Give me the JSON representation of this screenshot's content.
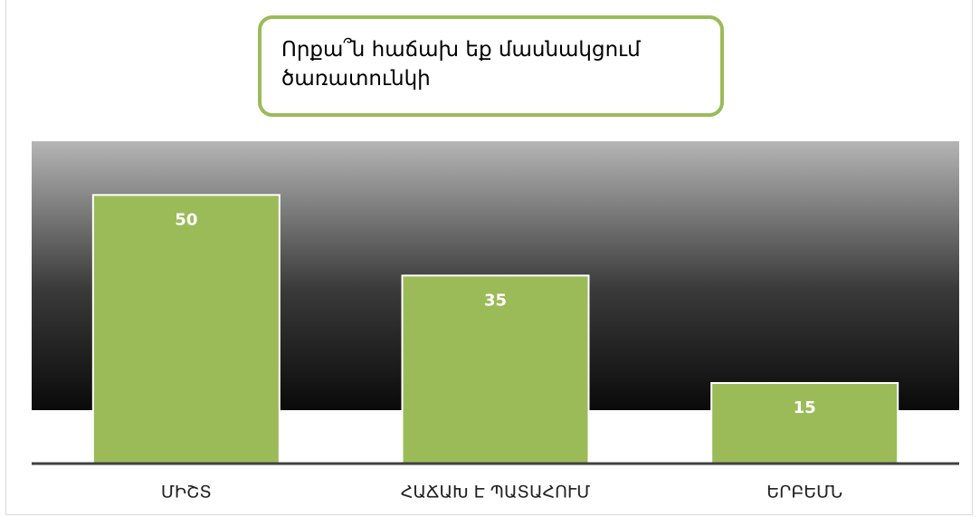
{
  "chart_data": {
    "type": "bar",
    "title": "Որքա՞ն հաճախ եք մասնակցում ծառատունկի",
    "categories": [
      "ՄԻՇՏ",
      "ՀԱՃԱԽ Է ՊԱՏԱՀՈՒՄ",
      "ԵՐԲԵՄՆ"
    ],
    "values": [
      50,
      35,
      15
    ],
    "color": "#9bbb59",
    "ylim": [
      0,
      60
    ]
  }
}
